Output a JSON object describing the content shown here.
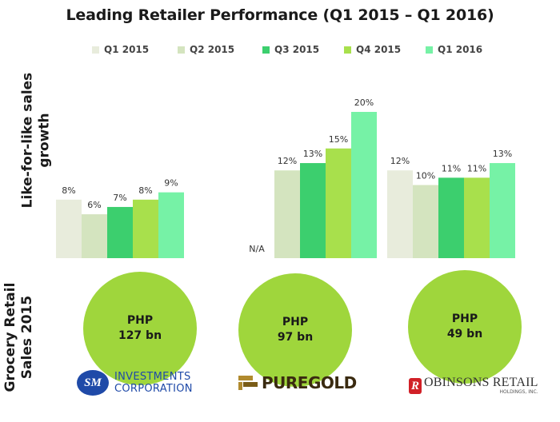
{
  "title": "Leading Retailer Performance (Q1 2015 – Q1 2016)",
  "ylabel_growth": "Like-for-like  sales growth",
  "ylabel_sales_line1": "Grocery Retail",
  "ylabel_sales_line2": "Sales 2015",
  "colors": {
    "Q1 2015": "#e8ecdc",
    "Q2 2015": "#d4e4bf",
    "Q3 2015": "#3ccf6e",
    "Q4 2015": "#a8e04c",
    "Q1 2016": "#76f2a6",
    "circle": "#9fd63c"
  },
  "chart_data": {
    "type": "bar",
    "title": "Leading Retailer Performance (Q1 2015 – Q1 2016)",
    "ylabel": "Like-for-like  sales growth",
    "xlabel": "",
    "categories": [
      "SM Investments Corporation",
      "Puregold",
      "Robinsons Retail"
    ],
    "series": [
      {
        "name": "Q1 2015",
        "values": [
          8,
          null,
          12
        ],
        "labels": [
          "8%",
          "N/A",
          "12%"
        ]
      },
      {
        "name": "Q2 2015",
        "values": [
          6,
          12,
          10
        ],
        "labels": [
          "6%",
          "12%",
          "10%"
        ]
      },
      {
        "name": "Q3 2015",
        "values": [
          7,
          13,
          11
        ],
        "labels": [
          "7%",
          "13%",
          "11%"
        ]
      },
      {
        "name": "Q4 2015",
        "values": [
          8,
          15,
          11
        ],
        "labels": [
          "8%",
          "15%",
          "11%"
        ]
      },
      {
        "name": "Q1 2016",
        "values": [
          9,
          20,
          13
        ],
        "labels": [
          "9%",
          "20%",
          "13%"
        ]
      }
    ],
    "legend_position": "top",
    "grid": false
  },
  "sales": [
    {
      "currency": "PHP",
      "amount": "127 bn"
    },
    {
      "currency": "PHP",
      "amount": "97 bn"
    },
    {
      "currency": "PHP",
      "amount": "49 bn"
    }
  ],
  "logos": {
    "sm_badge": "SM",
    "sm_line1": "INVESTMENTS",
    "sm_line2": "CORPORATION",
    "puregold": "PUREGOLD",
    "robinsons_badge": "R",
    "robinsons": "OBINSONS RETAIL",
    "robinsons_sub": "HOLDINGS, INC."
  }
}
